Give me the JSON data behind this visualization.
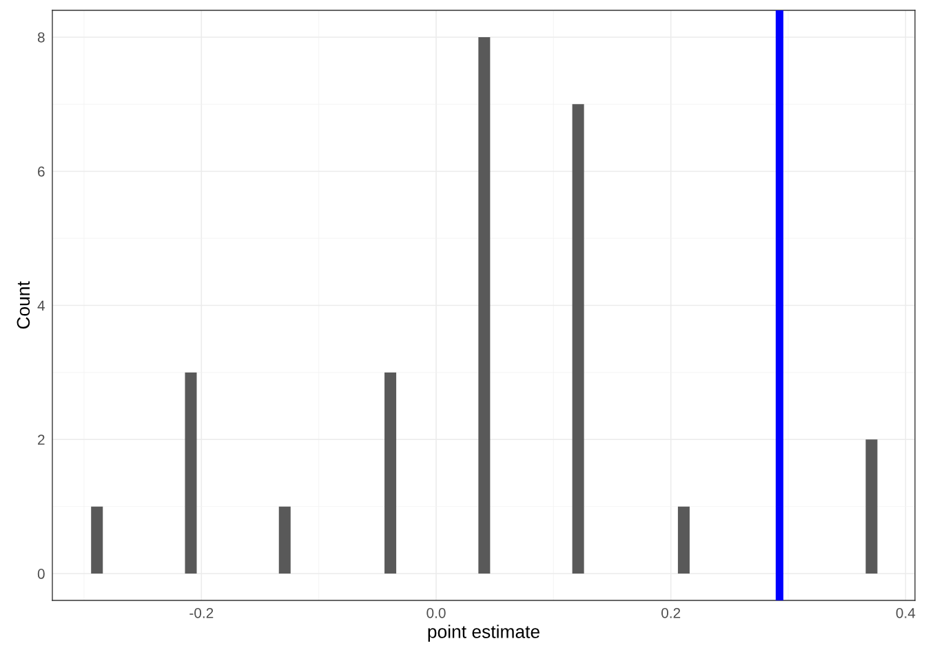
{
  "chart_data": {
    "type": "histogram",
    "xlabel": "point estimate",
    "ylabel": "Count",
    "bins": [
      -0.294,
      -0.284,
      -0.274,
      -0.264,
      -0.254,
      -0.244,
      -0.234,
      -0.224,
      -0.214,
      -0.204,
      -0.194,
      -0.184,
      -0.174,
      -0.164,
      -0.154,
      -0.144,
      -0.134,
      -0.124,
      -0.114,
      -0.104,
      -0.094,
      -0.084,
      -0.074,
      -0.064,
      -0.054,
      -0.044,
      -0.034,
      -0.024,
      -0.014,
      -0.004,
      0.006,
      0.016,
      0.026,
      0.036,
      0.046,
      0.056,
      0.066,
      0.076,
      0.086,
      0.096,
      0.106,
      0.116,
      0.126,
      0.136,
      0.146,
      0.156,
      0.166,
      0.176,
      0.186,
      0.196,
      0.206,
      0.216,
      0.226,
      0.236,
      0.246,
      0.256,
      0.266,
      0.276,
      0.286,
      0.296,
      0.306,
      0.316,
      0.326,
      0.336,
      0.346,
      0.356,
      0.366,
      0.376
    ],
    "values": [
      1,
      0,
      0,
      0,
      0,
      0,
      0,
      0,
      3,
      0,
      0,
      0,
      0,
      0,
      0,
      0,
      1,
      0,
      0,
      0,
      0,
      0,
      0,
      0,
      0,
      3,
      0,
      0,
      0,
      0,
      0,
      0,
      0,
      8,
      0,
      0,
      0,
      0,
      0,
      0,
      0,
      7,
      0,
      0,
      0,
      0,
      0,
      0,
      0,
      0,
      1,
      0,
      0,
      0,
      0,
      0,
      0,
      0,
      0,
      0,
      0,
      0,
      0,
      0,
      0,
      0,
      2
    ],
    "color": "#595959",
    "xlim": [
      -0.327,
      0.408
    ],
    "xticks": [
      {
        "value": -0.2,
        "label": "-0.2"
      },
      {
        "value": 0,
        "label": "0.0"
      },
      {
        "value": 0.2,
        "label": "0.2"
      },
      {
        "value": 0.4,
        "label": "0.4"
      }
    ],
    "ylim": [
      -0.4,
      8.4
    ],
    "yticks": [
      0,
      2,
      4,
      6,
      8
    ],
    "grid": true,
    "ref_lines": [
      {
        "axis": "x",
        "value": 0.2926,
        "color": "#0000ff",
        "line_style": "solid"
      }
    ]
  }
}
